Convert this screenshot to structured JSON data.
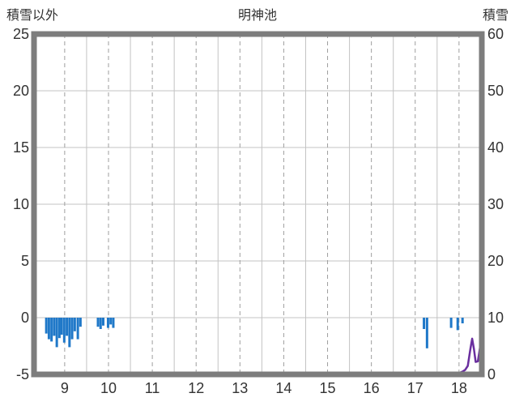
{
  "chart_data": {
    "type": "mixed",
    "title": "明神池",
    "left_axis": {
      "label": "積雪以外",
      "min": -5,
      "max": 25,
      "ticks": [
        25,
        20,
        15,
        10,
        5,
        0,
        -5
      ]
    },
    "right_axis": {
      "label": "積雪",
      "min": 0,
      "max": 60,
      "ticks": [
        60,
        50,
        40,
        30,
        20,
        10,
        0
      ]
    },
    "x_axis": {
      "min": 8.3,
      "max": 18.52,
      "ticks": [
        9,
        10,
        11,
        12,
        13,
        14,
        15,
        16,
        17,
        18
      ],
      "solid_gridlines_at": [
        9.5,
        10.5,
        11.5,
        12.5,
        13.5,
        14.5,
        15.5,
        16.5,
        17.5
      ]
    },
    "grid": true,
    "grid_color": "#c3c3c3",
    "dashed_grid_color": "#9e9e9e",
    "frame_color": "#7d7d7d",
    "series": [
      {
        "key": "non-snow-bars",
        "name": "積雪以外",
        "type": "bar",
        "axis": "left",
        "color": "#1f78c8",
        "points": [
          [
            8.58,
            -1.4
          ],
          [
            8.64,
            -1.9
          ],
          [
            8.7,
            -2.1
          ],
          [
            8.76,
            -1.6
          ],
          [
            8.82,
            -2.6
          ],
          [
            8.88,
            -1.8
          ],
          [
            8.93,
            -1.5
          ],
          [
            8.99,
            -2.2
          ],
          [
            9.05,
            -1.6
          ],
          [
            9.11,
            -2.6
          ],
          [
            9.17,
            -1.9
          ],
          [
            9.23,
            -1.2
          ],
          [
            9.3,
            -1.9
          ],
          [
            9.36,
            -0.8
          ],
          [
            9.76,
            -0.8
          ],
          [
            9.82,
            -1.0
          ],
          [
            9.88,
            -0.7
          ],
          [
            9.99,
            -0.9
          ],
          [
            10.05,
            -0.6
          ],
          [
            10.11,
            -0.9
          ],
          [
            17.2,
            -1.0
          ],
          [
            17.27,
            -2.7
          ],
          [
            17.82,
            -0.9
          ],
          [
            17.97,
            -1.1
          ],
          [
            18.08,
            -0.5
          ]
        ]
      },
      {
        "key": "snow-line",
        "name": "積雪",
        "type": "line",
        "axis": "right",
        "color": "#6a2f9f",
        "points": [
          [
            18.02,
            0.3
          ],
          [
            18.08,
            0.5
          ],
          [
            18.14,
            0.8
          ],
          [
            18.2,
            1.5
          ],
          [
            18.26,
            4.5
          ],
          [
            18.3,
            6.3
          ],
          [
            18.34,
            4.5
          ],
          [
            18.38,
            2.2
          ],
          [
            18.43,
            2.3
          ],
          [
            18.48,
            4.8
          ],
          [
            18.52,
            5.4
          ]
        ]
      }
    ]
  }
}
